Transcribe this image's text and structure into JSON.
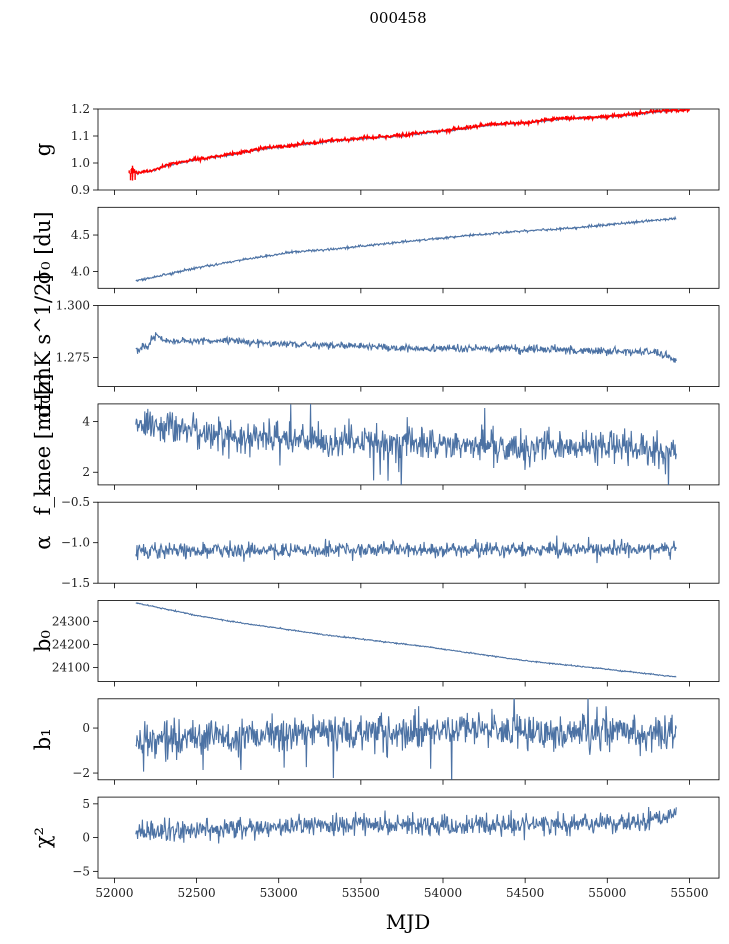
{
  "figure": {
    "title": "000458",
    "xlabel": "MJD"
  },
  "colors": {
    "series": "#4c72a4",
    "highlight": "#ff0000",
    "axis": "#000000"
  },
  "chart_data": [
    {
      "type": "line",
      "id": "g",
      "ylabel": "g",
      "ylim": [
        0.9,
        1.2
      ],
      "yticks": [
        0.9,
        1.0,
        1.1,
        1.2
      ],
      "ytick_labels": [
        "0.9",
        "1.0",
        "1.1",
        "1.2"
      ],
      "trend": [
        [
          52130,
          0.962
        ],
        [
          52200,
          0.967
        ],
        [
          52350,
          0.995
        ],
        [
          52500,
          1.012
        ],
        [
          52700,
          1.03
        ],
        [
          52900,
          1.052
        ],
        [
          53100,
          1.065
        ],
        [
          53300,
          1.08
        ],
        [
          53500,
          1.09
        ],
        [
          53700,
          1.098
        ],
        [
          53900,
          1.112
        ],
        [
          54100,
          1.125
        ],
        [
          54300,
          1.142
        ],
        [
          54500,
          1.148
        ],
        [
          54700,
          1.163
        ],
        [
          54900,
          1.167
        ],
        [
          55100,
          1.175
        ],
        [
          55300,
          1.19
        ],
        [
          55420,
          1.195
        ]
      ],
      "noise": 0.002,
      "spikes": 0,
      "highlight": {
        "trend": [
          [
            52100,
            0.963
          ],
          [
            52200,
            0.968
          ],
          [
            52350,
            0.997
          ],
          [
            52500,
            1.014
          ],
          [
            52700,
            1.032
          ],
          [
            52900,
            1.054
          ],
          [
            53100,
            1.067
          ],
          [
            53300,
            1.082
          ],
          [
            53500,
            1.092
          ],
          [
            53700,
            1.1
          ],
          [
            53900,
            1.114
          ],
          [
            54100,
            1.127
          ],
          [
            54300,
            1.144
          ],
          [
            54500,
            1.15
          ],
          [
            54700,
            1.165
          ],
          [
            54900,
            1.169
          ],
          [
            55100,
            1.177
          ],
          [
            55300,
            1.192
          ],
          [
            55500,
            1.197
          ]
        ],
        "noise": 0.003,
        "start_burst": {
          "x": 52110,
          "low": 0.935,
          "high": 0.99
        }
      }
    },
    {
      "type": "line",
      "id": "sigma_du",
      "ylabel": "σ₀ [du]",
      "ylim": [
        3.77,
        4.88
      ],
      "yticks": [
        4.0,
        4.5
      ],
      "ytick_labels": [
        "4.0",
        "4.5"
      ],
      "trend": [
        [
          52130,
          3.87
        ],
        [
          52300,
          3.95
        ],
        [
          52500,
          4.05
        ],
        [
          52800,
          4.17
        ],
        [
          53100,
          4.27
        ],
        [
          53300,
          4.3
        ],
        [
          53600,
          4.37
        ],
        [
          54000,
          4.46
        ],
        [
          54400,
          4.54
        ],
        [
          54800,
          4.6
        ],
        [
          55100,
          4.66
        ],
        [
          55420,
          4.73
        ]
      ],
      "noise": 0.008,
      "spikes": 0
    },
    {
      "type": "line",
      "id": "sigma_mk",
      "ylabel": "σ₀[mK s^1/2]",
      "ylim": [
        1.261,
        1.3
      ],
      "yticks": [
        1.275,
        1.3
      ],
      "ytick_labels": [
        "1.275",
        "1.300"
      ],
      "trend": [
        [
          52130,
          1.2785
        ],
        [
          52200,
          1.28
        ],
        [
          52250,
          1.286
        ],
        [
          52300,
          1.283
        ],
        [
          52500,
          1.283
        ],
        [
          52700,
          1.283
        ],
        [
          52900,
          1.282
        ],
        [
          53100,
          1.2815
        ],
        [
          53300,
          1.281
        ],
        [
          53600,
          1.28
        ],
        [
          53900,
          1.279
        ],
        [
          54200,
          1.2795
        ],
        [
          54500,
          1.279
        ],
        [
          54800,
          1.2785
        ],
        [
          55100,
          1.278
        ],
        [
          55300,
          1.2775
        ],
        [
          55420,
          1.2735
        ]
      ],
      "noise": 0.0009,
      "spikes": 0
    },
    {
      "type": "line",
      "id": "fknee",
      "ylabel": "f_knee [mHz]",
      "ylim": [
        1.5,
        4.7
      ],
      "yticks": [
        2,
        4
      ],
      "ytick_labels": [
        "2",
        "4"
      ],
      "trend": [
        [
          52130,
          3.95
        ],
        [
          52500,
          3.6
        ],
        [
          53000,
          3.3
        ],
        [
          53500,
          3.2
        ],
        [
          54000,
          3.1
        ],
        [
          54500,
          3.0
        ],
        [
          55000,
          3.0
        ],
        [
          55420,
          2.8
        ]
      ],
      "noise": 0.32,
      "spikes": 8
    },
    {
      "type": "line",
      "id": "alpha",
      "ylabel": "α",
      "ylim": [
        -1.5,
        -0.5
      ],
      "yticks": [
        -1.5,
        -1.0,
        -0.5
      ],
      "ytick_labels": [
        "−1.5",
        "−1.0",
        "−0.5"
      ],
      "trend": [
        [
          52130,
          -1.1
        ],
        [
          55420,
          -1.08
        ]
      ],
      "noise": 0.045,
      "spikes": 0
    },
    {
      "type": "line",
      "id": "b0",
      "ylabel": "b₀",
      "ylim": [
        24040,
        24390
      ],
      "yticks": [
        24100,
        24200,
        24300
      ],
      "ytick_labels": [
        "24100",
        "24200",
        "24300"
      ],
      "trend": [
        [
          52130,
          24380
        ],
        [
          52300,
          24355
        ],
        [
          52500,
          24325
        ],
        [
          52800,
          24290
        ],
        [
          53100,
          24260
        ],
        [
          53300,
          24240
        ],
        [
          53600,
          24215
        ],
        [
          53900,
          24190
        ],
        [
          54200,
          24160
        ],
        [
          54500,
          24130
        ],
        [
          54800,
          24108
        ],
        [
          55100,
          24085
        ],
        [
          55420,
          24060
        ]
      ],
      "noise": 1.3,
      "spikes": 0
    },
    {
      "type": "line",
      "id": "b1",
      "ylabel": "b₁",
      "ylim": [
        -2.3,
        1.3
      ],
      "yticks": [
        -2,
        0
      ],
      "ytick_labels": [
        "−2",
        "0"
      ],
      "trend": [
        [
          52130,
          -0.45
        ],
        [
          52500,
          -0.45
        ],
        [
          53000,
          -0.3
        ],
        [
          53500,
          -0.2
        ],
        [
          54000,
          -0.15
        ],
        [
          54500,
          -0.1
        ],
        [
          55000,
          -0.15
        ],
        [
          55420,
          -0.25
        ]
      ],
      "noise": 0.42,
      "spikes": 10
    },
    {
      "type": "line",
      "id": "chi2",
      "ylabel": "χ²",
      "ylim": [
        -6,
        6
      ],
      "yticks": [
        -5,
        0,
        5
      ],
      "ytick_labels": [
        "−5",
        "0",
        "5"
      ],
      "trend": [
        [
          52130,
          0.5
        ],
        [
          52400,
          1.0
        ],
        [
          52800,
          1.5
        ],
        [
          53200,
          1.7
        ],
        [
          53600,
          2.0
        ],
        [
          54000,
          1.8
        ],
        [
          54400,
          1.9
        ],
        [
          54800,
          2.0
        ],
        [
          55200,
          2.2
        ],
        [
          55420,
          3.5
        ]
      ],
      "noise": 0.75,
      "spikes": 0
    }
  ],
  "x_axis": {
    "xlim": [
      51900,
      55680
    ],
    "ticks": [
      52000,
      52500,
      53000,
      53500,
      54000,
      54500,
      55000,
      55500
    ],
    "tick_labels": [
      "52000",
      "52500",
      "53000",
      "53500",
      "54000",
      "54500",
      "55000",
      "55500"
    ]
  }
}
